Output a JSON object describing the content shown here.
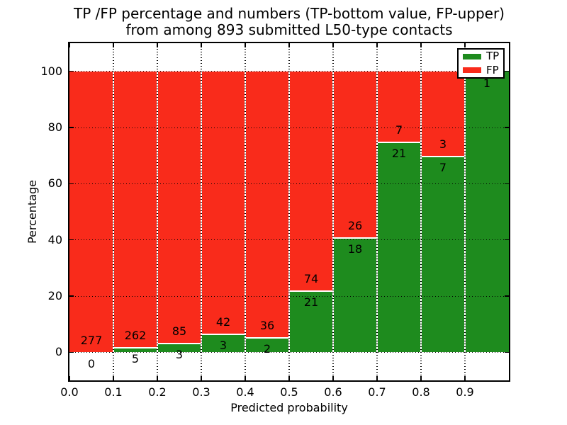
{
  "figure": {
    "title_line1": "TP /FP percentage and numbers (TP-bottom value, FP-upper)",
    "title_line2": "from among 893 submitted L50-type contacts"
  },
  "chart_data": {
    "type": "bar",
    "stacked": true,
    "title": "TP /FP percentage and numbers (TP-bottom value, FP-upper) from among 893 submitted L50-type contacts",
    "xlabel": "Predicted probability",
    "ylabel": "Percentage",
    "x_tick_labels": [
      "0.0",
      "0.1",
      "0.2",
      "0.3",
      "0.4",
      "0.5",
      "0.6",
      "0.7",
      "0.8",
      "0.9"
    ],
    "y_tick_labels": [
      "0",
      "20",
      "40",
      "60",
      "80",
      "100"
    ],
    "y_tick_values": [
      0,
      20,
      40,
      60,
      80,
      100
    ],
    "ylim": [
      -10,
      110
    ],
    "xlim": [
      0.0,
      1.0
    ],
    "total_submitted_contacts": 893,
    "legend_position": "upper right",
    "legend": [
      {
        "label": "TP",
        "color": "#1e8b1e"
      },
      {
        "label": "FP",
        "color": "#f92b1b"
      }
    ],
    "categories": [
      "0.0-0.1",
      "0.1-0.2",
      "0.2-0.3",
      "0.3-0.4",
      "0.4-0.5",
      "0.5-0.6",
      "0.6-0.7",
      "0.7-0.8",
      "0.8-0.9",
      "0.9-1.0"
    ],
    "series": [
      {
        "name": "TP",
        "color": "#1e8b1e",
        "values": [
          0,
          5,
          3,
          3,
          2,
          21,
          18,
          21,
          7,
          1
        ]
      },
      {
        "name": "FP",
        "color": "#f92b1b",
        "values": [
          277,
          262,
          85,
          42,
          36,
          74,
          26,
          7,
          3,
          0
        ]
      }
    ],
    "tp_percent": [
      0.0,
      1.87,
      3.41,
      6.67,
      5.26,
      22.11,
      40.91,
      75.0,
      70.0,
      100.0
    ],
    "bar_labels": [
      {
        "fp": "277",
        "tp": "0"
      },
      {
        "fp": "262",
        "tp": "5"
      },
      {
        "fp": "85",
        "tp": "3"
      },
      {
        "fp": "42",
        "tp": "3"
      },
      {
        "fp": "36",
        "tp": "2"
      },
      {
        "fp": "74",
        "tp": "21"
      },
      {
        "fp": "26",
        "tp": "18"
      },
      {
        "fp": "7",
        "tp": "21"
      },
      {
        "fp": "3",
        "tp": "7"
      },
      {
        "fp": "",
        "tp": "1"
      }
    ],
    "grid": true
  },
  "colors": {
    "tp_green": "#1e8b1e",
    "fp_red": "#f92b1b",
    "axis": "#000000",
    "background": "#ffffff"
  }
}
